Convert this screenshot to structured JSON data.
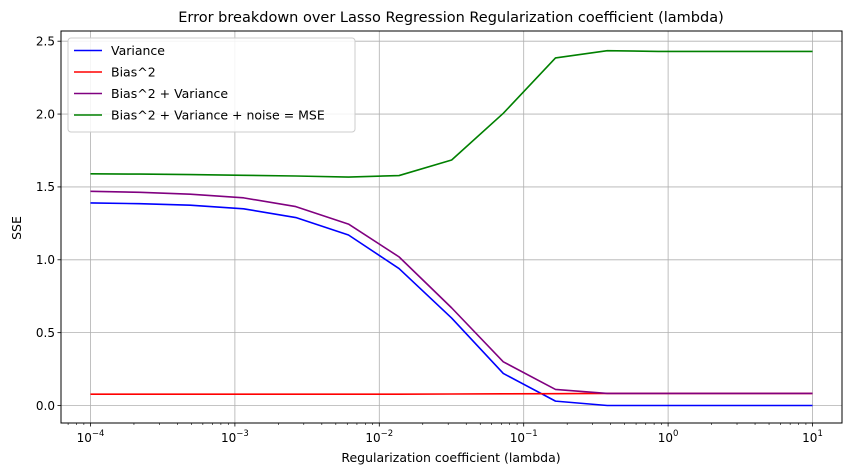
{
  "chart_data": {
    "type": "line",
    "title": "Error breakdown over Lasso Regression Regularization coefficient (lambda)",
    "xlabel": "Regularization coefficient (lambda)",
    "ylabel": "SSE",
    "xscale": "log",
    "xlim": [
      6.25e-05,
      16
    ],
    "ylim": [
      -0.12,
      2.57
    ],
    "xticks": [
      {
        "value": 0.0001,
        "base": "10",
        "exp": "−4"
      },
      {
        "value": 0.001,
        "base": "10",
        "exp": "−3"
      },
      {
        "value": 0.01,
        "base": "10",
        "exp": "−2"
      },
      {
        "value": 0.1,
        "base": "10",
        "exp": "−1"
      },
      {
        "value": 1,
        "base": "10",
        "exp": "0"
      },
      {
        "value": 10,
        "base": "10",
        "exp": "1"
      }
    ],
    "yticks": [
      {
        "value": 0.0,
        "label": "0.0"
      },
      {
        "value": 0.5,
        "label": "0.5"
      },
      {
        "value": 1.0,
        "label": "1.0"
      },
      {
        "value": 1.5,
        "label": "1.5"
      },
      {
        "value": 2.0,
        "label": "2.0"
      },
      {
        "value": 2.5,
        "label": "2.5"
      }
    ],
    "grid": true,
    "legend_position": "top-left",
    "x": [
      0.0001,
      0.00022,
      0.00049,
      0.00115,
      0.00264,
      0.00612,
      0.0137,
      0.0317,
      0.0722,
      0.166,
      0.379,
      0.855,
      10
    ],
    "series": [
      {
        "name": "Variance",
        "color": "#0000ff",
        "values": [
          1.39,
          1.385,
          1.375,
          1.35,
          1.29,
          1.17,
          0.94,
          0.6,
          0.22,
          0.03,
          0.0,
          0.0,
          0.0
        ]
      },
      {
        "name": "Bias^2",
        "color": "#ff0000",
        "values": [
          0.078,
          0.078,
          0.078,
          0.078,
          0.078,
          0.078,
          0.078,
          0.079,
          0.08,
          0.081,
          0.083,
          0.083,
          0.083
        ]
      },
      {
        "name": "Bias^2 + Variance",
        "color": "#800080",
        "values": [
          1.47,
          1.463,
          1.45,
          1.425,
          1.365,
          1.245,
          1.02,
          0.67,
          0.3,
          0.11,
          0.083,
          0.083,
          0.083
        ]
      },
      {
        "name": "Bias^2 + Variance + noise = MSE",
        "color": "#008000",
        "values": [
          1.59,
          1.588,
          1.585,
          1.58,
          1.575,
          1.568,
          1.578,
          1.685,
          2.005,
          2.385,
          2.435,
          2.43,
          2.43
        ]
      }
    ]
  }
}
